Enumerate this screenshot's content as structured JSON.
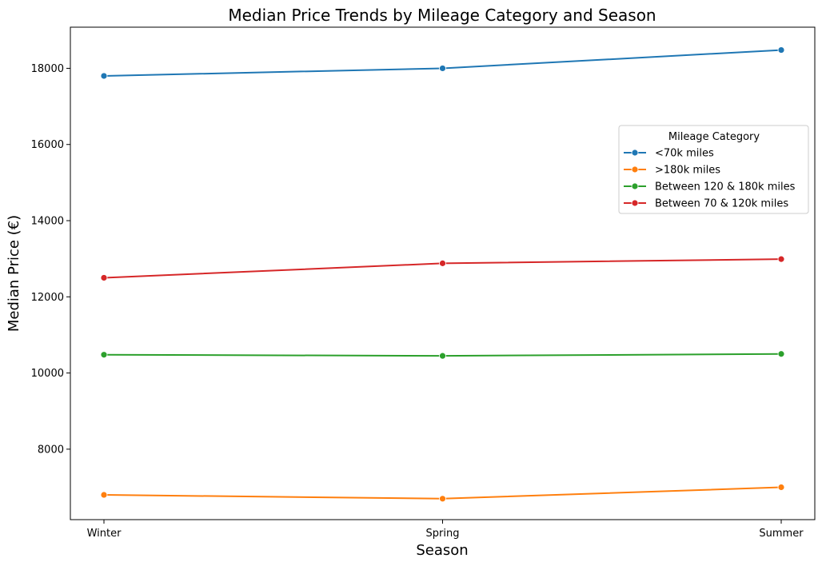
{
  "chart_data": {
    "type": "line",
    "title": "Median Price Trends by Mileage Category and Season",
    "xlabel": "Season",
    "ylabel": "Median Price (€)",
    "categories": [
      "Winter",
      "Spring",
      "Summer"
    ],
    "yticks": [
      8000,
      10000,
      12000,
      14000,
      16000,
      18000
    ],
    "ylim": [
      6150,
      19080
    ],
    "grid": false,
    "legend": {
      "title": "Mileage Category",
      "placement": "right"
    },
    "series": [
      {
        "name": "<70k miles",
        "color": "#1f77b4",
        "values": [
          17800,
          18000,
          18480
        ]
      },
      {
        "name": ">180k miles",
        "color": "#ff7f0e",
        "values": [
          6800,
          6700,
          7000
        ]
      },
      {
        "name": "Between 120 & 180k miles",
        "color": "#2ca02c",
        "values": [
          10480,
          10450,
          10500
        ]
      },
      {
        "name": "Between 70 & 120k miles",
        "color": "#d62728",
        "values": [
          12500,
          12880,
          12990
        ]
      }
    ]
  }
}
